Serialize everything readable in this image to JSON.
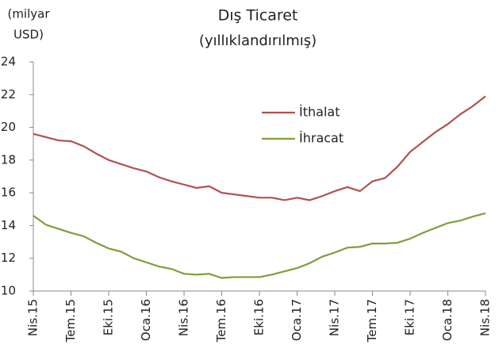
{
  "chart_data": {
    "type": "line",
    "title": "Dış Ticaret",
    "subtitle": "(yıllıklandırılmış)",
    "y_label": [
      "(milyar",
      "USD)"
    ],
    "categories": [
      "Nis.15",
      null,
      null,
      "Tem.15",
      null,
      null,
      "Eki.15",
      null,
      null,
      "Oca.16",
      null,
      null,
      "Nis.16",
      null,
      null,
      "Tem.16",
      null,
      null,
      "Eki.16",
      null,
      null,
      "Oca.17",
      null,
      null,
      "Nis.17",
      null,
      null,
      "Tem.17",
      null,
      null,
      "Eki.17",
      null,
      null,
      "Oca.18",
      null,
      null,
      "Nis.18"
    ],
    "series": [
      {
        "name": "İthalat",
        "color": "#b0524e",
        "values": [
          19.6,
          19.4,
          19.2,
          19.15,
          18.85,
          18.4,
          18.0,
          17.75,
          17.5,
          17.3,
          16.95,
          16.7,
          16.5,
          16.3,
          16.4,
          16.0,
          15.9,
          15.8,
          15.7,
          15.7,
          15.55,
          15.7,
          15.55,
          15.8,
          16.1,
          16.35,
          16.1,
          16.7,
          16.9,
          17.6,
          18.5,
          19.1,
          19.7,
          20.2,
          20.8,
          21.3,
          21.9
        ]
      },
      {
        "name": "İhracat",
        "color": "#7f9e3a",
        "values": [
          14.6,
          14.05,
          13.8,
          13.55,
          13.35,
          12.95,
          12.6,
          12.4,
          12.0,
          11.75,
          11.5,
          11.35,
          11.05,
          11.0,
          11.05,
          10.8,
          10.85,
          10.85,
          10.85,
          11.0,
          11.2,
          11.4,
          11.7,
          12.1,
          12.35,
          12.65,
          12.7,
          12.9,
          12.9,
          12.95,
          13.2,
          13.55,
          13.85,
          14.15,
          14.3,
          14.55,
          14.75
        ]
      }
    ],
    "ylim": [
      10,
      24
    ],
    "yticks": [
      10,
      12,
      14,
      16,
      18,
      20,
      22,
      24
    ],
    "legend": "center"
  }
}
